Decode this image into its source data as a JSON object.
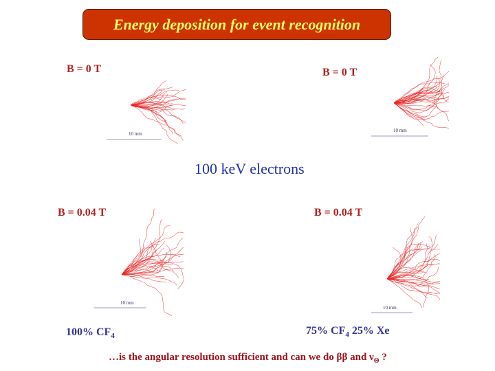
{
  "slide": {
    "title": "Energy deposition for event recognition",
    "center_label": "100 keV electrons",
    "panels": [
      {
        "field_label": "B = 0 T",
        "scale": "10 mm"
      },
      {
        "field_label": "B = 0 T",
        "scale": "10 mm"
      },
      {
        "field_label": "B = 0.04 T",
        "scale": "10 mm"
      },
      {
        "field_label": "B = 0.04 T",
        "scale": "10 mm"
      }
    ],
    "gas_left": {
      "prefix": "100% CF",
      "sub": "4"
    },
    "gas_right": {
      "prefix": "75% CF",
      "sub": "4",
      "suffix": " 25% Xe"
    },
    "footer": {
      "text": "…is the angular resolution sufficient and can we do ββ and ν",
      "sub": "Θ",
      "end": " ?"
    }
  },
  "colors": {
    "title_bg": "#cc3300",
    "title_text": "#ffff66",
    "label_red": "#b22222",
    "blue": "#333399",
    "track_red": "#ee2222"
  }
}
